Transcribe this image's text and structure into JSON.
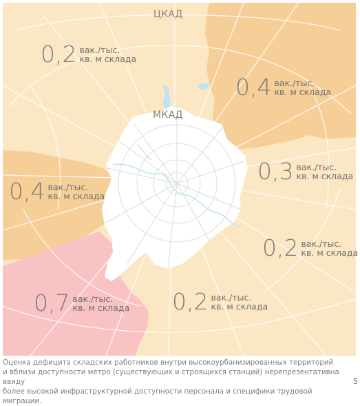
{
  "map": {
    "colors": {
      "base_light": "#fbe7c4",
      "zone_orange": "#f6cf98",
      "zone_red": "#f9c2c3",
      "moscow_city": "#ffffff",
      "roads": "#ffffff",
      "city_streets": "#dcdcdc",
      "water": "#bfe3f2"
    },
    "labels": {
      "tskad": "ЦКАД",
      "mkad": "МКАД"
    }
  },
  "zones": [
    {
      "id": "northwest",
      "value": "0,2",
      "unit_line1": "вак./тыс.",
      "unit_line2": "кв. м склада"
    },
    {
      "id": "northeast",
      "value": "0,4",
      "unit_line1": "вак./тыс.",
      "unit_line2": "кв. м склада"
    },
    {
      "id": "east",
      "value": "0,3",
      "unit_line1": "вак./тыс.",
      "unit_line2": "кв. м склада"
    },
    {
      "id": "west",
      "value": "0,4",
      "unit_line1": "вак./тыс.",
      "unit_line2": "кв. м склада"
    },
    {
      "id": "southeast",
      "value": "0,2",
      "unit_line1": "вак./тыс.",
      "unit_line2": "кв. м склада"
    },
    {
      "id": "southwest",
      "value": "0,7",
      "unit_line1": "вак./тыс.",
      "unit_line2": "кв. м склада"
    },
    {
      "id": "south",
      "value": "0,2",
      "unit_line1": "вак./тыс.",
      "unit_line2": "кв. м склада"
    }
  ],
  "caption": {
    "line1": "Оценка дефицита складских работников внутри высокоурбанизированных территорий",
    "line2": "и вблизи доступности метро (существующих и строящихся станций) нерепрезентативна ввиду",
    "line3": "более высокой инфраструктурной доступности персонала и специфики трудовой миграции."
  },
  "page_number": "5"
}
